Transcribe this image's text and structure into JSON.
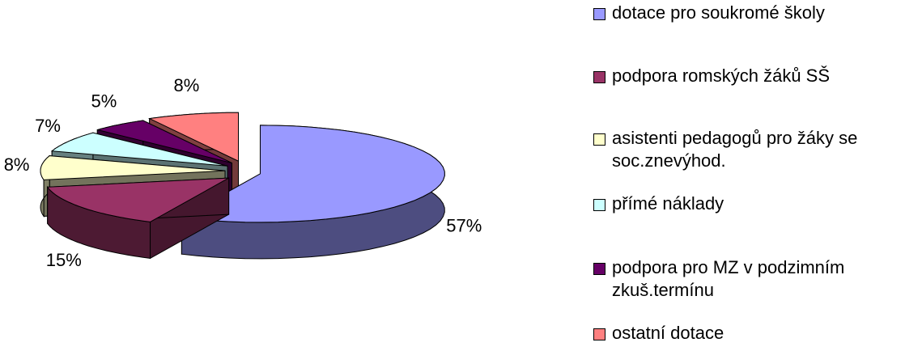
{
  "chart_data": {
    "type": "pie3d",
    "categories": [
      "dotace pro soukromé školy",
      "podpora romských žáků SŠ",
      "asistenti pedagogů pro žáky se soc.znevýhod.",
      "přímé náklady",
      "podpora pro MZ v podzimním zkuš.termínu",
      "ostatní dotace"
    ],
    "values": [
      57,
      15,
      8,
      7,
      5,
      8
    ],
    "value_labels": [
      "57%",
      "15%",
      "8%",
      "7%",
      "5%",
      "8%"
    ],
    "colors": [
      "#9999ff",
      "#993366",
      "#ffffcc",
      "#ccffff",
      "#660066",
      "#ff8080"
    ],
    "legend": "right"
  }
}
